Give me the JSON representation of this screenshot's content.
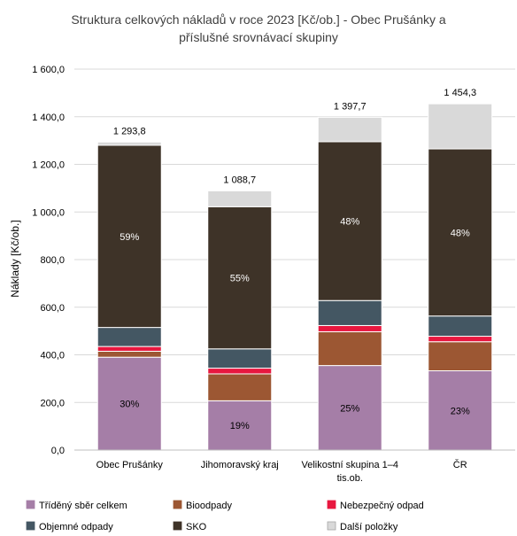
{
  "chart_data": {
    "type": "bar",
    "stacked": true,
    "title": "Struktura celkových nákladů v roce 2023 [Kč/ob.] - Obec Prušánky a příslušné srovnávací skupiny",
    "title_lines": [
      "Struktura celkových nákladů v roce 2023 [Kč/ob.] - Obec Prušánky a",
      "příslušné srovnávací skupiny"
    ],
    "xlabel": "",
    "ylabel": "Náklady [Kč/ob.]",
    "ylim": [
      0,
      1600
    ],
    "y_ticks": [
      0,
      200,
      400,
      600,
      800,
      1000,
      1200,
      1400,
      1600
    ],
    "y_tick_labels": [
      "0,0",
      "200,0",
      "400,0",
      "600,0",
      "800,0",
      "1 000,0",
      "1 200,0",
      "1 400,0",
      "1 600,0"
    ],
    "grid": true,
    "legend_position": "bottom",
    "categories": [
      [
        "Obec Prušánky"
      ],
      [
        "Jihomoravský kraj"
      ],
      [
        "Velikostní skupina 1–4",
        "tis.ob."
      ],
      [
        "ČR"
      ]
    ],
    "totals": [
      1293.8,
      1088.7,
      1397.7,
      1454.3
    ],
    "total_labels": [
      "1 293,8",
      "1 088,7",
      "1 397,7",
      "1 454,3"
    ],
    "series": [
      {
        "name": "Tříděný sběr celkem",
        "color": "#a57ea7",
        "values": [
          390,
          207,
          355,
          333
        ],
        "labels": [
          "30%",
          "19%",
          "25%",
          "23%"
        ],
        "label_color": "#000000"
      },
      {
        "name": "Bioodpady",
        "color": "#9c5733",
        "values": [
          25,
          113,
          142,
          122
        ],
        "labels": [
          "",
          "",
          "",
          ""
        ],
        "label_color": "#000000"
      },
      {
        "name": "Nebezpečný odpad",
        "color": "#e8173f",
        "values": [
          20,
          24,
          26,
          23
        ],
        "labels": [
          "",
          "",
          "",
          ""
        ],
        "label_color": "#000000"
      },
      {
        "name": "Objemné odpady",
        "color": "#445763",
        "values": [
          80,
          81,
          105,
          85
        ],
        "labels": [
          "",
          "",
          "",
          ""
        ],
        "label_color": "#000000"
      },
      {
        "name": "SKO",
        "color": "#3e3328",
        "values": [
          765,
          597,
          667,
          702
        ],
        "labels": [
          "59%",
          "55%",
          "48%",
          "48%"
        ],
        "label_color": "#ffffff"
      },
      {
        "name": "Další položky",
        "color": "#d9d9d9",
        "values": [
          13.8,
          66.7,
          102.7,
          189.3
        ],
        "labels": [
          "",
          "",
          "",
          ""
        ],
        "label_color": "#000000"
      }
    ]
  }
}
